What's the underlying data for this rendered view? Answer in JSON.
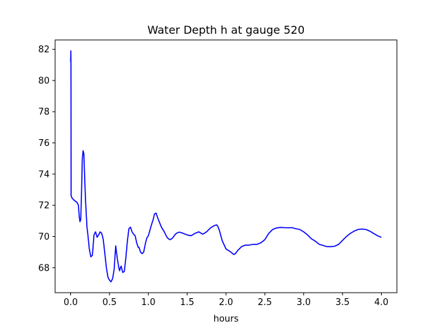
{
  "chart_data": {
    "type": "line",
    "title": "Water Depth h at gauge 520",
    "xlabel": "hours",
    "ylabel": "",
    "xlim": [
      -0.2,
      4.2
    ],
    "ylim": [
      66.4,
      82.6
    ],
    "grid": false,
    "xticks": [
      0.0,
      0.5,
      1.0,
      1.5,
      2.0,
      2.5,
      3.0,
      3.5,
      4.0
    ],
    "xtick_labels": [
      "0.0",
      "0.5",
      "1.0",
      "1.5",
      "2.0",
      "2.5",
      "3.0",
      "3.5",
      "4.0"
    ],
    "yticks": [
      68,
      70,
      72,
      74,
      76,
      78,
      80,
      82
    ],
    "ytick_labels": [
      "68",
      "70",
      "72",
      "74",
      "76",
      "78",
      "80",
      "82"
    ],
    "series": [
      {
        "color": "#0000ff",
        "x": [
          0.0,
          0.002,
          0.004,
          0.006,
          0.02,
          0.05,
          0.08,
          0.1,
          0.11,
          0.12,
          0.13,
          0.14,
          0.15,
          0.16,
          0.17,
          0.18,
          0.19,
          0.2,
          0.21,
          0.22,
          0.24,
          0.26,
          0.28,
          0.3,
          0.32,
          0.34,
          0.36,
          0.38,
          0.4,
          0.42,
          0.44,
          0.46,
          0.48,
          0.5,
          0.52,
          0.54,
          0.56,
          0.58,
          0.6,
          0.62,
          0.63,
          0.64,
          0.65,
          0.67,
          0.69,
          0.71,
          0.73,
          0.75,
          0.77,
          0.79,
          0.81,
          0.83,
          0.85,
          0.87,
          0.88,
          0.9,
          0.92,
          0.94,
          0.96,
          0.98,
          1.0,
          1.02,
          1.04,
          1.06,
          1.08,
          1.1,
          1.12,
          1.14,
          1.16,
          1.18,
          1.2,
          1.22,
          1.24,
          1.26,
          1.28,
          1.3,
          1.32,
          1.34,
          1.36,
          1.38,
          1.4,
          1.42,
          1.45,
          1.5,
          1.55,
          1.6,
          1.65,
          1.7,
          1.75,
          1.8,
          1.85,
          1.88,
          1.9,
          1.92,
          1.95,
          2.0,
          2.05,
          2.1,
          2.12,
          2.15,
          2.2,
          2.25,
          2.3,
          2.35,
          2.4,
          2.45,
          2.5,
          2.55,
          2.6,
          2.65,
          2.7,
          2.8,
          2.85,
          2.9,
          2.95,
          3.0,
          3.05,
          3.1,
          3.15,
          3.2,
          3.3,
          3.35,
          3.4,
          3.45,
          3.5,
          3.55,
          3.6,
          3.65,
          3.7,
          3.75,
          3.8,
          3.85,
          3.9,
          3.95,
          4.0
        ],
        "y": [
          81.2,
          81.9,
          81.0,
          72.6,
          72.45,
          72.3,
          72.2,
          72.0,
          71.3,
          70.95,
          71.1,
          72.8,
          75.0,
          75.5,
          75.3,
          73.8,
          72.5,
          71.5,
          70.6,
          70.2,
          69.2,
          68.7,
          68.8,
          70.1,
          70.3,
          69.95,
          70.1,
          70.3,
          70.2,
          69.8,
          68.9,
          68.0,
          67.4,
          67.2,
          67.1,
          67.3,
          67.9,
          69.4,
          68.6,
          68.0,
          67.8,
          68.0,
          68.1,
          67.7,
          67.75,
          68.6,
          69.7,
          70.5,
          70.6,
          70.3,
          70.15,
          70.05,
          69.6,
          69.3,
          69.3,
          69.0,
          68.9,
          69.0,
          69.5,
          69.9,
          70.05,
          70.4,
          70.75,
          71.05,
          71.45,
          71.5,
          71.2,
          70.95,
          70.7,
          70.5,
          70.35,
          70.15,
          69.95,
          69.85,
          69.8,
          69.85,
          69.95,
          70.1,
          70.2,
          70.25,
          70.28,
          70.25,
          70.2,
          70.1,
          70.05,
          70.2,
          70.3,
          70.15,
          70.3,
          70.55,
          70.7,
          70.75,
          70.6,
          70.3,
          69.75,
          69.2,
          69.05,
          68.85,
          68.9,
          69.1,
          69.35,
          69.45,
          69.45,
          69.5,
          69.5,
          69.6,
          69.8,
          70.2,
          70.45,
          70.55,
          70.58,
          70.56,
          70.57,
          70.5,
          70.45,
          70.3,
          70.1,
          69.85,
          69.7,
          69.5,
          69.35,
          69.35,
          69.38,
          69.5,
          69.75,
          70.0,
          70.2,
          70.35,
          70.45,
          70.48,
          70.45,
          70.35,
          70.2,
          70.05,
          69.95
        ]
      }
    ]
  }
}
